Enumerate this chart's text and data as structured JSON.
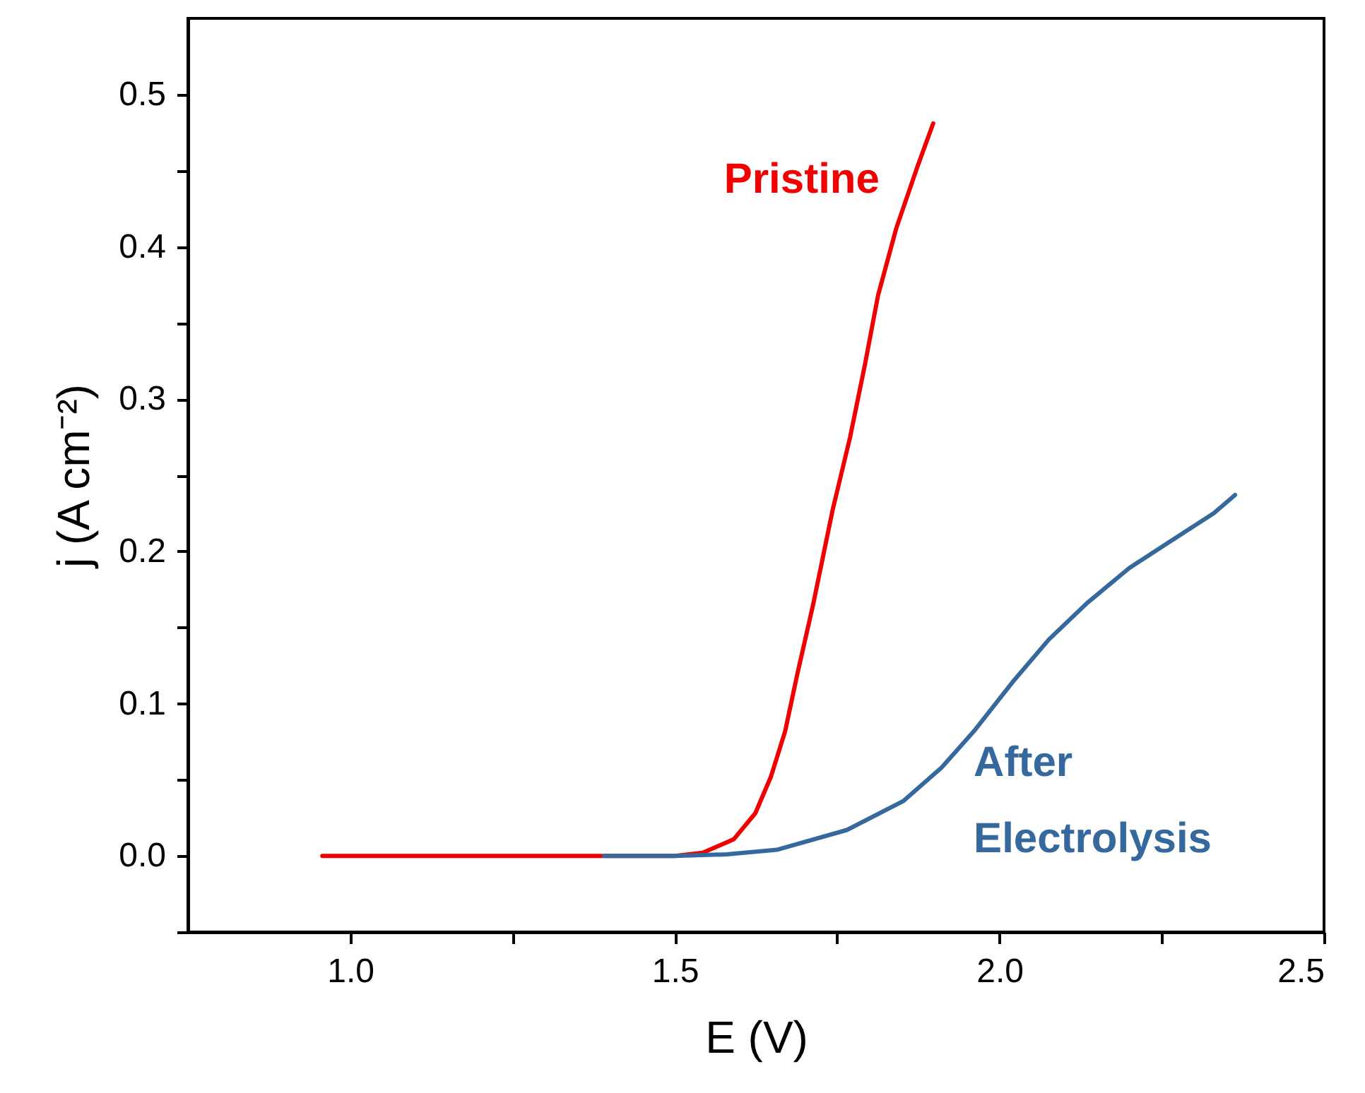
{
  "chart_data": {
    "type": "line",
    "xlabel": "E (V)",
    "ylabel": "j (A cm⁻²)",
    "xlim": [
      0.75,
      2.5
    ],
    "ylim": [
      -0.05,
      0.55
    ],
    "xticks": [
      {
        "value": 1,
        "label": "1.0"
      },
      {
        "value": 1.25,
        "label": null
      },
      {
        "value": 1.5,
        "label": "1.5"
      },
      {
        "value": 1.75,
        "label": null
      },
      {
        "value": 2,
        "label": "2.0"
      },
      {
        "value": 2.25,
        "label": null
      },
      {
        "value": 2.5,
        "label": "2.5"
      }
    ],
    "yticks": [
      {
        "value": -0.05,
        "label": null
      },
      {
        "value": 0,
        "label": "0.0"
      },
      {
        "value": 0.05,
        "label": null
      },
      {
        "value": 0.1,
        "label": "0.1"
      },
      {
        "value": 0.15,
        "label": null
      },
      {
        "value": 0.2,
        "label": "0.2"
      },
      {
        "value": 0.25,
        "label": null
      },
      {
        "value": 0.3,
        "label": "0.3"
      },
      {
        "value": 0.35,
        "label": null
      },
      {
        "value": 0.4,
        "label": "0.4"
      },
      {
        "value": 0.45,
        "label": null
      },
      {
        "value": 0.5,
        "label": "0.5"
      }
    ],
    "grid": false,
    "marker": "none",
    "line_style": "solid",
    "series": [
      {
        "name": "Pristine",
        "color": "#f00000",
        "x": [
          0.957,
          1.2,
          1.5,
          1.543,
          1.591,
          1.624,
          1.648,
          1.67,
          1.689,
          1.713,
          1.743,
          1.77,
          1.793,
          1.813,
          1.841,
          1.874,
          1.898
        ],
        "values": [
          0,
          0,
          0,
          0.002,
          0.011,
          0.028,
          0.052,
          0.082,
          0.12,
          0.165,
          0.227,
          0.275,
          0.323,
          0.368,
          0.412,
          0.453,
          0.481
        ]
      },
      {
        "name": "After Electrolysis",
        "color": "#35689c",
        "x": [
          1.391,
          1.5,
          1.58,
          1.657,
          1.765,
          1.852,
          1.911,
          1.961,
          2.02,
          2.076,
          2.135,
          2.2,
          2.272,
          2.33,
          2.363
        ],
        "values": [
          0,
          0,
          0.001,
          0.004,
          0.017,
          0.036,
          0.058,
          0.082,
          0.114,
          0.142,
          0.166,
          0.189,
          0.209,
          0.225,
          0.237
        ]
      }
    ]
  }
}
